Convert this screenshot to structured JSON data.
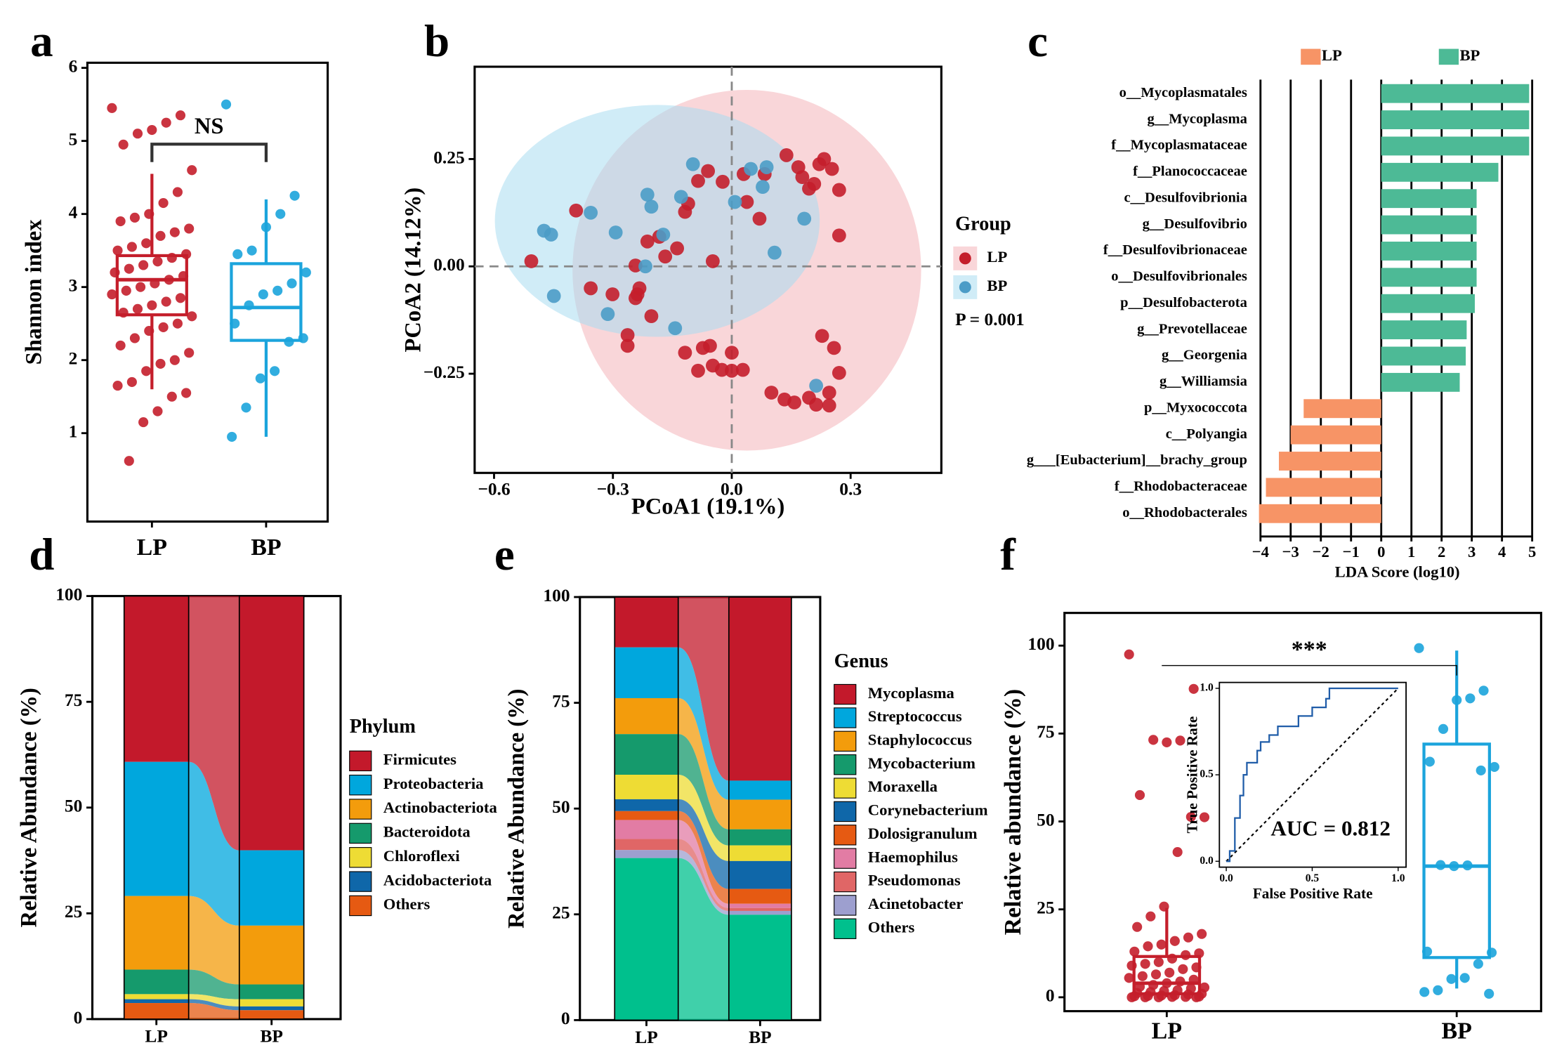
{
  "chart_data": [
    {
      "type": "box",
      "panel": "a",
      "y_label": "Shannon index",
      "annotation": "NS",
      "ylim": [
        -0.21,
        6.07
      ],
      "yticks": [
        1,
        2,
        3,
        4,
        5,
        6
      ],
      "series": [
        {
          "name": "LP",
          "color": "#c41e2b",
          "box": {
            "min": 1.6,
            "q1": 2.62,
            "median": 3.1,
            "q3": 3.43,
            "max": 4.55
          },
          "points": [
            5.45,
            5.35,
            5.25,
            5.15,
            5.1,
            4.95,
            4.6,
            4.3,
            4.15,
            4.0,
            3.95,
            3.9,
            3.8,
            3.75,
            3.7,
            3.6,
            3.55,
            3.5,
            3.45,
            3.4,
            3.35,
            3.3,
            3.25,
            3.2,
            3.15,
            3.1,
            3.05,
            3.0,
            2.95,
            2.9,
            2.85,
            2.8,
            2.75,
            2.7,
            2.65,
            2.6,
            2.5,
            2.45,
            2.4,
            2.3,
            2.2,
            2.1,
            2.0,
            1.95,
            1.85,
            1.7,
            1.65,
            1.55,
            1.5,
            1.3,
            1.15,
            0.62
          ]
        },
        {
          "name": "BP",
          "color": "#1ba4dc",
          "box": {
            "min": 0.95,
            "q1": 2.27,
            "median": 2.72,
            "q3": 3.32,
            "max": 4.2
          },
          "points": [
            5.5,
            4.25,
            4.0,
            3.82,
            3.5,
            3.45,
            3.2,
            3.05,
            2.95,
            2.9,
            2.75,
            2.5,
            2.3,
            2.25,
            1.85,
            1.75,
            1.35,
            0.95
          ]
        }
      ]
    },
    {
      "type": "scatter",
      "panel": "b",
      "x_label": "PCoA1 (19.1%)",
      "y_label": "PCoA2 (14.12%)",
      "legend_title": "Group",
      "annotation": "P = 0.001",
      "xlim": [
        -0.649,
        0.529
      ],
      "ylim": [
        -0.481,
        0.465
      ],
      "xticks": [
        {
          "value": -0.6,
          "label": "−0.6"
        },
        {
          "value": -0.3,
          "label": "−0.3"
        },
        {
          "value": 0,
          "label": "0.0"
        },
        0.3
      ],
      "yticks": [
        {
          "value": -0.25,
          "label": "−0.25"
        },
        {
          "value": 0,
          "label": "0.00"
        },
        0.25
      ],
      "series": [
        {
          "name": "LP",
          "color": "#c41e2b",
          "fill": "#f4b4ba",
          "ellipse": {
            "cx": 0.038,
            "cy": -0.009,
            "rx": 0.44,
            "ry": 0.42
          },
          "x": [
            -0.506,
            -0.393,
            -0.356,
            -0.301,
            -0.263,
            -0.263,
            -0.238,
            -0.243,
            -0.233,
            -0.213,
            -0.203,
            -0.183,
            -0.168,
            -0.138,
            -0.118,
            -0.11,
            -0.085,
            -0.06,
            -0.048,
            -0.023,
            0.03,
            0.038,
            0.07,
            0.083,
            0.138,
            0.168,
            0.178,
            0.208,
            0.233,
            0.271,
            0.271,
            -0.243,
            -0.118,
            -0.085,
            -0.073,
            -0.055,
            -0.048,
            -0.025,
            0.0,
            0.0,
            0.028,
            0.1,
            0.133,
            0.158,
            0.195,
            0.213,
            0.246,
            0.258,
            0.271,
            0.228,
            0.246,
            0.221,
            0.195,
            0.253
          ],
          "y": [
            0.012,
            0.13,
            -0.051,
            -0.065,
            -0.16,
            -0.185,
            -0.065,
            0.002,
            -0.051,
            0.058,
            -0.116,
            0.069,
            0.023,
            0.042,
            0.127,
            0.146,
            0.199,
            0.222,
            0.012,
            0.197,
            0.215,
            0.15,
            0.111,
            0.215,
            0.259,
            0.231,
            0.208,
            0.192,
            0.25,
            0.178,
            0.072,
            -0.074,
            -0.201,
            -0.243,
            -0.19,
            -0.185,
            -0.231,
            -0.241,
            -0.201,
            -0.243,
            -0.241,
            -0.294,
            -0.31,
            -0.317,
            -0.306,
            -0.322,
            -0.294,
            -0.19,
            -0.248,
            -0.162,
            -0.324,
            0.238,
            0.181,
            0.227
          ]
        },
        {
          "name": "BP",
          "color": "#4b9cc7",
          "fill": "#a9dcf0",
          "ellipse": {
            "cx": -0.188,
            "cy": 0.106,
            "rx": 0.41,
            "ry": 0.27
          },
          "x": [
            -0.474,
            -0.456,
            -0.449,
            -0.356,
            -0.313,
            -0.293,
            -0.218,
            -0.213,
            -0.203,
            -0.173,
            -0.143,
            -0.128,
            -0.098,
            0.008,
            0.048,
            0.078,
            0.088,
            0.108,
            0.183,
            0.213
          ],
          "y": [
            0.083,
            0.074,
            -0.069,
            0.125,
            -0.111,
            0.079,
            0.0,
            0.167,
            0.139,
            0.074,
            -0.144,
            0.162,
            0.238,
            0.15,
            0.227,
            0.185,
            0.231,
            0.032,
            0.111,
            -0.278
          ]
        }
      ]
    },
    {
      "type": "hbar",
      "panel": "c",
      "x_label": "LDA Score (log10)",
      "xlim": [
        -4.243,
        5.066
      ],
      "xticks": [
        {
          "value": -4,
          "label": "−4"
        },
        {
          "value": -3,
          "label": "−3"
        },
        {
          "value": -2,
          "label": "−2"
        },
        {
          "value": -1,
          "label": "−1"
        },
        0,
        1,
        2,
        3,
        4,
        5
      ],
      "categories": [
        "o__Mycoplasmatales",
        "g__Mycoplasma",
        "f__Mycoplasmataceae",
        "f__Planococcaceae",
        "c__Desulfovibrionia",
        "g__Desulfovibrio",
        "f__Desulfovibrionaceae",
        "o__Desulfovibrionales",
        "p__Desulfobacterota",
        "g__Prevotellaceae",
        "g__Georgenia",
        "g__Williamsia",
        "p__Myxococcota",
        "c__Polyangia",
        "g___[Eubacterium]__brachy_group",
        "f__Rhodobacteraceae",
        "o__Rhodobacterales"
      ],
      "series": [
        {
          "name": "LP",
          "color": "#f79466",
          "values": [
            null,
            null,
            null,
            null,
            null,
            null,
            null,
            null,
            null,
            null,
            null,
            null,
            -2.57,
            -3.0,
            -3.39,
            -3.82,
            -4.05
          ]
        },
        {
          "name": "BP",
          "color": "#4dba96",
          "values": [
            4.9,
            4.9,
            4.9,
            3.88,
            3.16,
            3.16,
            3.16,
            3.16,
            3.1,
            2.83,
            2.8,
            2.6,
            null,
            null,
            null,
            null,
            null
          ]
        }
      ]
    },
    {
      "type": "stacked_bar",
      "panel": "d",
      "y_label": "Relative Abundance (%)",
      "legend_title": "Phylum",
      "ylim": [
        0,
        100
      ],
      "yticks": [
        0,
        25,
        50,
        75,
        100
      ],
      "categories": [
        "LP",
        "BP"
      ],
      "series": [
        {
          "name": "Firmicutes",
          "color": "#c3192b",
          "values": [
            39.2,
            60.1
          ]
        },
        {
          "name": "Proteobacteria",
          "color": "#00a7dd",
          "values": [
            31.7,
            17.8
          ]
        },
        {
          "name": "Actinobacteriota",
          "color": "#f39c0c",
          "values": [
            17.4,
            13.9
          ]
        },
        {
          "name": "Bacteroidota",
          "color": "#159a6c",
          "values": [
            5.8,
            3.5
          ]
        },
        {
          "name": "Chloroflexi",
          "color": "#eedc34",
          "values": [
            1.2,
            1.7
          ]
        },
        {
          "name": "Acidobacteriota",
          "color": "#0f67a9",
          "values": [
            0.9,
            0.9
          ]
        },
        {
          "name": "Others",
          "color": "#e65a12",
          "values": [
            3.8,
            2.1
          ]
        }
      ]
    },
    {
      "type": "stacked_bar",
      "panel": "e",
      "y_label": "Relative Abundance (%)",
      "legend_title": "Genus",
      "ylim": [
        0,
        100
      ],
      "yticks": [
        0,
        25,
        50,
        75,
        100
      ],
      "categories": [
        "LP",
        "BP"
      ],
      "series": [
        {
          "name": "Mycoplasma",
          "color": "#c3192b",
          "values": [
            11.9,
            43.4
          ]
        },
        {
          "name": "Streptococcus",
          "color": "#00a7dd",
          "values": [
            12.0,
            4.5
          ]
        },
        {
          "name": "Staphylococcus",
          "color": "#f39c0c",
          "values": [
            8.5,
            7.0
          ]
        },
        {
          "name": "Mycobacterium",
          "color": "#159a6c",
          "values": [
            9.6,
            3.8
          ]
        },
        {
          "name": "Moraxella",
          "color": "#eedc34",
          "values": [
            5.8,
            3.7
          ]
        },
        {
          "name": "Corynebacterium",
          "color": "#0f67a9",
          "values": [
            2.8,
            6.6
          ]
        },
        {
          "name": "Dolosigranulum",
          "color": "#e65a12",
          "values": [
            2.1,
            3.5
          ]
        },
        {
          "name": "Haemophilus",
          "color": "#e27ca4",
          "values": [
            4.5,
            1.0
          ]
        },
        {
          "name": "Pseudomonas",
          "color": "#e06666",
          "values": [
            2.6,
            0.7
          ]
        },
        {
          "name": "Acinetobacter",
          "color": "#9d9fcf",
          "values": [
            1.9,
            0.9
          ]
        },
        {
          "name": "Others",
          "color": "#00c08d",
          "values": [
            38.3,
            24.9
          ]
        }
      ]
    },
    {
      "type": "box",
      "panel": "f",
      "y_label": "Relative abundance (%)",
      "annotation": "***",
      "ylim": [
        -3.95,
        109.3
      ],
      "yticks": [
        0,
        25,
        50,
        75,
        100
      ],
      "series": [
        {
          "name": "LP",
          "color": "#c41e2b",
          "box": {
            "min": 0,
            "q1": 1.0,
            "median": 4.0,
            "q3": 11.6,
            "max": 25.4
          },
          "points": [
            97.5,
            87.7,
            73,
            72.5,
            73.2,
            57.5,
            51.2,
            51.3,
            41.3,
            25.8,
            23,
            20,
            18,
            17,
            16,
            15,
            14.5,
            13,
            12.5,
            12,
            11,
            10,
            9.5,
            9,
            8.5,
            8,
            7,
            6.5,
            6,
            5.5,
            5,
            4.5,
            4,
            3.5,
            3,
            2.8,
            2.5,
            2,
            1.8,
            1.5,
            1.2,
            1,
            0.8,
            0.6,
            0.5,
            0.4,
            0.3,
            0.2,
            0.1,
            0.1,
            0,
            0,
            0,
            0
          ]
        },
        {
          "name": "BP",
          "color": "#1ba4dc",
          "box": {
            "min": 2.5,
            "q1": 11.3,
            "median": 37.3,
            "q3": 72.0,
            "max": 98.6
          },
          "points": [
            99.3,
            87.2,
            85,
            84.5,
            76.3,
            67,
            65.5,
            64.5,
            37.5,
            37.3,
            37.6,
            13,
            12.7,
            9.5,
            5.5,
            5.2,
            2,
            1.5,
            1
          ]
        }
      ],
      "inset": {
        "type": "line",
        "x_label": "False Positive Rate",
        "y_label": "True Positive Rate",
        "annotation": "AUC = 0.812",
        "color": "#1f5ca8",
        "xlim": [
          -0.04,
          1.046
        ],
        "ylim": [
          -0.034,
          1.034
        ],
        "xticks": [
          {
            "value": 0,
            "label": "0.0"
          },
          0.5,
          {
            "value": 1,
            "label": "1.0"
          }
        ],
        "yticks": [
          {
            "value": 0,
            "label": "0.0"
          },
          0.5,
          {
            "value": 1,
            "label": "1.0"
          }
        ],
        "x": [
          0,
          0.02,
          0.02,
          0.05,
          0.05,
          0.08,
          0.08,
          0.1,
          0.1,
          0.12,
          0.12,
          0.18,
          0.18,
          0.2,
          0.2,
          0.25,
          0.25,
          0.3,
          0.3,
          0.42,
          0.42,
          0.5,
          0.5,
          0.58,
          0.58,
          0.6,
          0.6,
          1.0
        ],
        "y": [
          0,
          0,
          0.06,
          0.06,
          0.25,
          0.25,
          0.38,
          0.38,
          0.5,
          0.5,
          0.57,
          0.57,
          0.64,
          0.64,
          0.69,
          0.69,
          0.73,
          0.73,
          0.78,
          0.78,
          0.84,
          0.84,
          0.89,
          0.89,
          0.94,
          0.94,
          1.0,
          1.0
        ]
      }
    }
  ]
}
